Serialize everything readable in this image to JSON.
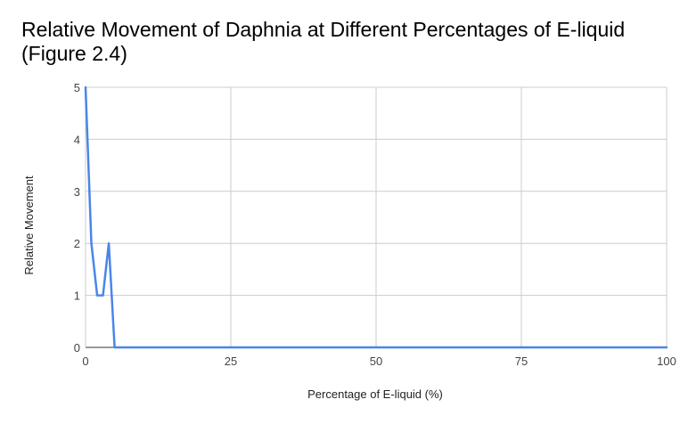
{
  "chart_data": {
    "type": "line",
    "title": "Relative Movement of Daphnia at Different Percentages of E-liquid (Figure 2.4)",
    "xlabel": "Percentage of E-liquid (%)",
    "ylabel": "Relative Movement",
    "xlim": [
      0,
      100
    ],
    "ylim": [
      0,
      5
    ],
    "xticks": [
      0,
      25,
      50,
      75,
      100
    ],
    "yticks": [
      0,
      1,
      2,
      3,
      4,
      5
    ],
    "grid": true,
    "legend": "none",
    "series": [
      {
        "color": "#4a86e8",
        "x": [
          0,
          1,
          2,
          3,
          4,
          5,
          100
        ],
        "y": [
          5,
          2,
          1,
          1,
          2,
          0,
          0
        ]
      }
    ]
  }
}
